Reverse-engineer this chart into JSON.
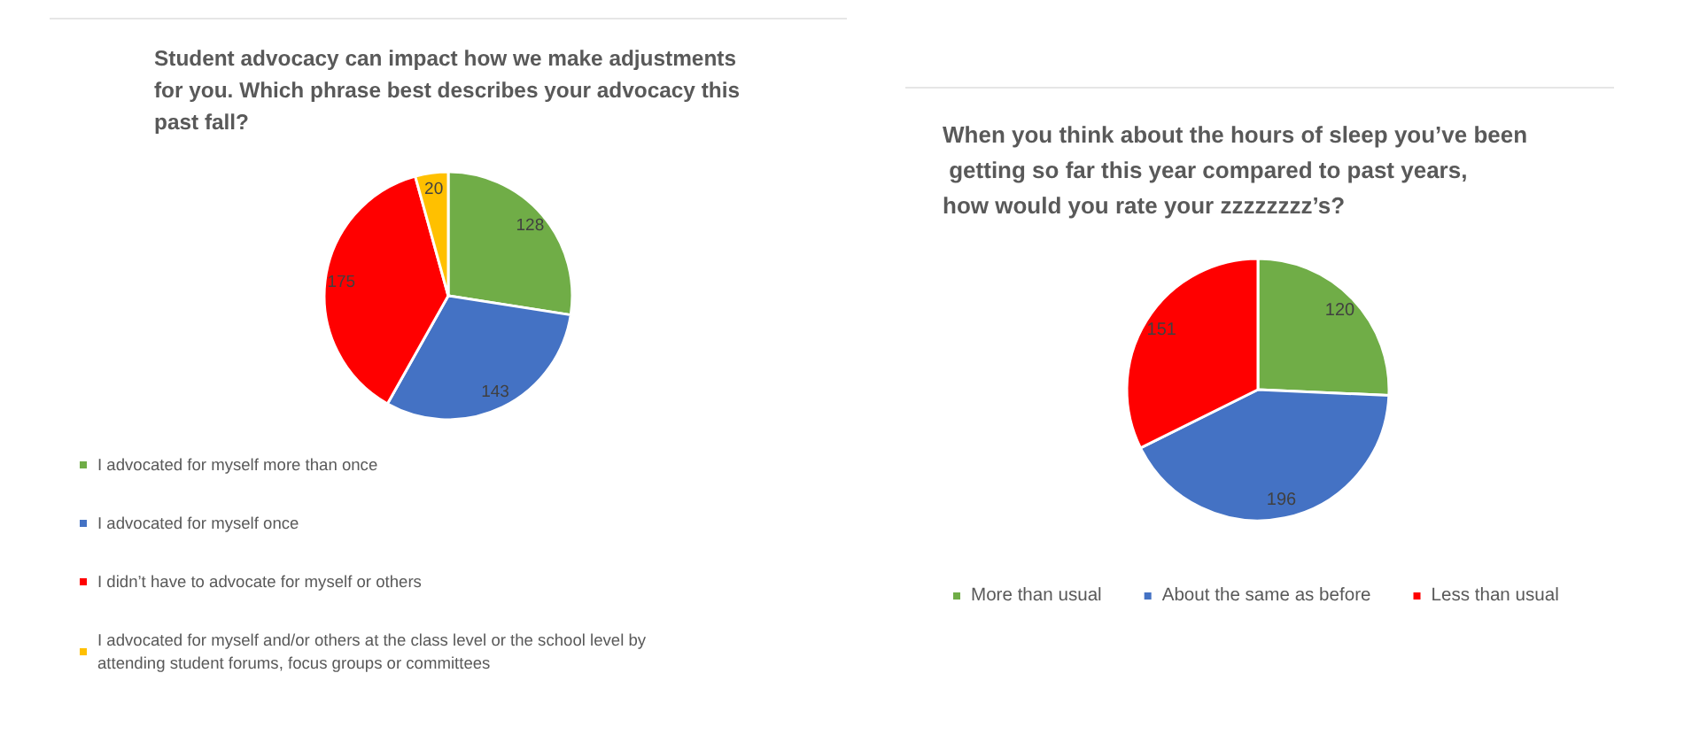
{
  "chart_data": [
    {
      "type": "pie",
      "title": "Student advocacy can impact how we make adjustments for you. Which phrase best describes your advocacy this past fall?",
      "categories": [
        "I advocated for myself more than once",
        "I advocated for myself once",
        "I didn’t have to advocate for myself or others",
        "I advocated for myself and/or others at the class level or the school level by attending student forums, focus groups or committees"
      ],
      "values": [
        128,
        143,
        175,
        20
      ],
      "colors": [
        "#70ad47",
        "#4472c4",
        "#ff0000",
        "#ffc000"
      ],
      "data_labels": true,
      "legend": "bottom"
    },
    {
      "type": "pie",
      "title": "When you think about the hours of sleep you’ve been getting so far this year compared to past years, how would you rate your zzzzzzzz’s?",
      "categories": [
        "More than usual",
        "About the same as before",
        "Less than usual"
      ],
      "values": [
        120,
        196,
        151
      ],
      "colors": [
        "#70ad47",
        "#4472c4",
        "#ff0000"
      ],
      "data_labels": true,
      "legend": "bottom"
    }
  ]
}
